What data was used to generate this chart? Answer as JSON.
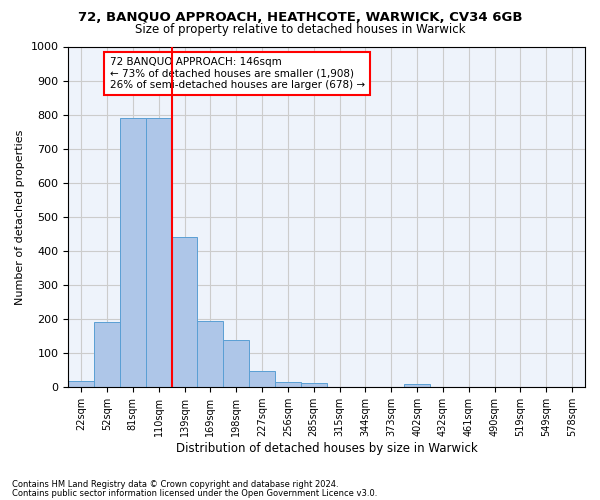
{
  "title1": "72, BANQUO APPROACH, HEATHCOTE, WARWICK, CV34 6GB",
  "title2": "Size of property relative to detached houses in Warwick",
  "xlabel": "Distribution of detached houses by size in Warwick",
  "ylabel": "Number of detached properties",
  "footnote1": "Contains HM Land Registry data © Crown copyright and database right 2024.",
  "footnote2": "Contains public sector information licensed under the Open Government Licence v3.0.",
  "annotation_line1": "72 BANQUO APPROACH: 146sqm",
  "annotation_line2": "← 73% of detached houses are smaller (1,908)",
  "annotation_line3": "26% of semi-detached houses are larger (678) →",
  "bar_values": [
    18,
    190,
    790,
    790,
    440,
    195,
    140,
    48,
    15,
    12,
    0,
    0,
    0,
    10,
    0,
    0,
    0,
    0,
    0,
    0
  ],
  "categories": [
    "22sqm",
    "52sqm",
    "81sqm",
    "110sqm",
    "139sqm",
    "169sqm",
    "198sqm",
    "227sqm",
    "256sqm",
    "285sqm",
    "315sqm",
    "344sqm",
    "373sqm",
    "402sqm",
    "432sqm",
    "461sqm",
    "490sqm",
    "519sqm",
    "549sqm",
    "578sqm"
  ],
  "bar_color": "#aec6e8",
  "bar_edgecolor": "#5a9fd4",
  "vline_color": "red",
  "ylim": [
    0,
    1000
  ],
  "yticks": [
    0,
    100,
    200,
    300,
    400,
    500,
    600,
    700,
    800,
    900,
    1000
  ],
  "grid_color": "#cccccc",
  "bg_color": "#eef3fb",
  "fig_bg_color": "#ffffff"
}
